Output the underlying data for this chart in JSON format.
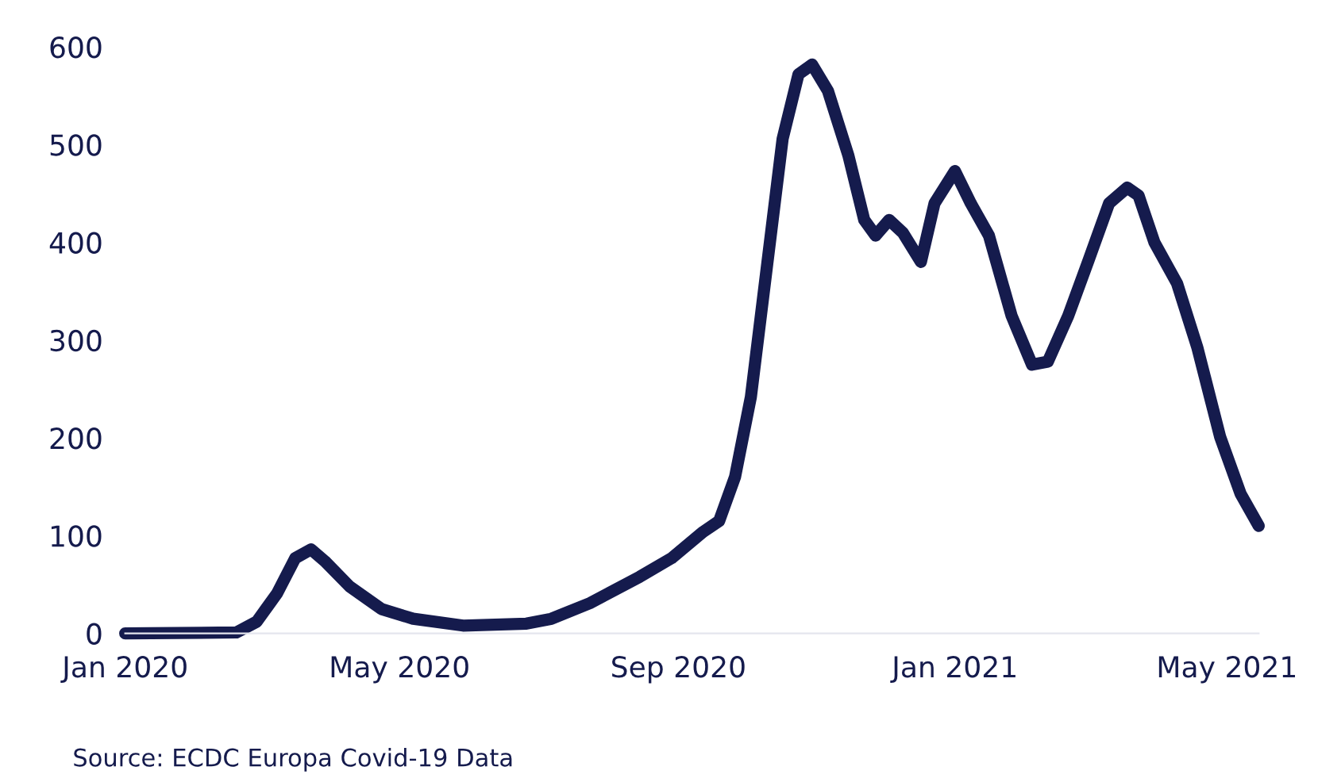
{
  "chart_data": {
    "type": "line",
    "x": [
      "2020-01-01",
      "2020-02-19",
      "2020-02-28",
      "2020-03-08",
      "2020-03-16",
      "2020-03-23",
      "2020-03-29",
      "2020-04-09",
      "2020-04-23",
      "2020-05-07",
      "2020-05-29",
      "2020-06-26",
      "2020-07-07",
      "2020-07-24",
      "2020-08-15",
      "2020-08-29",
      "2020-09-12",
      "2020-09-19",
      "2020-09-26",
      "2020-10-03",
      "2020-10-10",
      "2020-10-17",
      "2020-10-24",
      "2020-10-30",
      "2020-11-06",
      "2020-11-15",
      "2020-11-22",
      "2020-11-27",
      "2020-12-03",
      "2020-12-09",
      "2020-12-17",
      "2020-12-23",
      "2021-01-01",
      "2021-01-08",
      "2021-01-16",
      "2021-01-26",
      "2021-02-04",
      "2021-02-11",
      "2021-02-20",
      "2021-03-01",
      "2021-03-10",
      "2021-03-18",
      "2021-03-23",
      "2021-03-30",
      "2021-04-09",
      "2021-04-18",
      "2021-04-28",
      "2021-05-07",
      "2021-05-15"
    ],
    "series": [
      {
        "color": "#151b4d",
        "values": [
          0,
          1,
          12,
          41,
          77,
          86,
          74,
          48,
          25,
          15,
          8,
          10,
          15,
          31,
          58,
          77,
          104,
          115,
          160,
          242,
          374,
          506,
          572,
          582,
          555,
          489,
          423,
          407,
          423,
          410,
          380,
          440,
          473,
          440,
          407,
          325,
          275,
          278,
          325,
          382,
          440,
          456,
          448,
          400,
          358,
          292,
          201,
          143,
          110
        ]
      }
    ],
    "xticks": [
      {
        "value": "2020-01-01",
        "label": "Jan 2020"
      },
      {
        "value": "2020-05-01",
        "label": "May 2020"
      },
      {
        "value": "2020-09-01",
        "label": "Sep 2020"
      },
      {
        "value": "2021-01-01",
        "label": "Jan 2021"
      },
      {
        "value": "2021-05-01",
        "label": "May 2021"
      }
    ],
    "xlim": [
      "2020-01-01",
      "2021-05-15"
    ],
    "ylim": [
      0,
      600
    ],
    "yticks": [
      0,
      100,
      200,
      300,
      400,
      500,
      600
    ],
    "grid": false,
    "legend": false,
    "marker": "none",
    "line_style": "solid",
    "annotations": [
      "Source: ECDC Europa Covid-19 Data"
    ]
  }
}
